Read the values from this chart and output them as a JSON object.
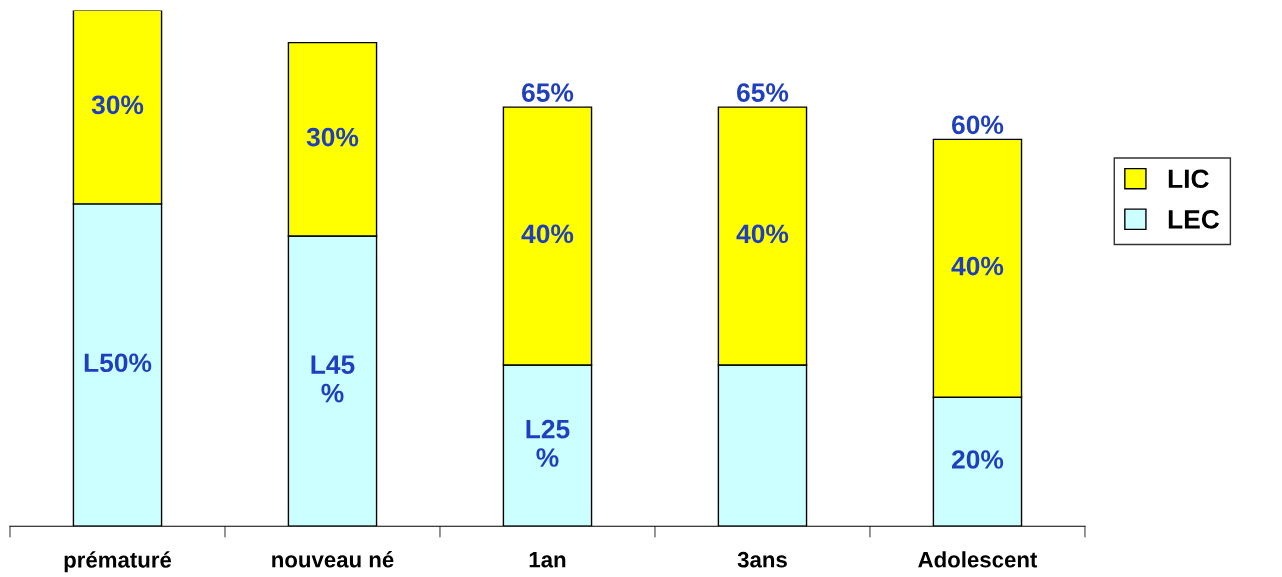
{
  "chart_data": {
    "type": "bar",
    "stacked": true,
    "categories": [
      "prématuré",
      "nouveau né",
      "1an",
      "3ans",
      "Adolescent"
    ],
    "series": [
      {
        "name": "LEC",
        "color": "#ccffff",
        "values": [
          50,
          45,
          25,
          25,
          20
        ],
        "value_labels": [
          "L50%",
          "L45\n%",
          "L25\n%",
          null,
          "20%"
        ]
      },
      {
        "name": "LIC",
        "color": "#ffff00",
        "values": [
          30,
          30,
          40,
          40,
          40
        ],
        "value_labels": [
          "30%",
          "30%",
          "40%",
          "40%",
          "40%"
        ]
      }
    ],
    "totals": [
      null,
      null,
      "65%",
      "65%",
      "60%"
    ],
    "legend": "right",
    "grid": false
  }
}
